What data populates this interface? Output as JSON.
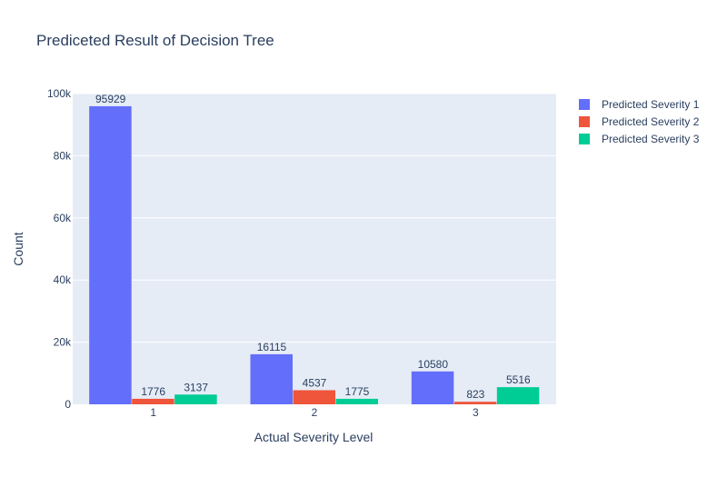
{
  "chart_data": {
    "type": "bar",
    "title": "Prediceted Result of Decision Tree",
    "xlabel": "Actual Severity Level",
    "ylabel": "Count",
    "categories": [
      "1",
      "2",
      "3"
    ],
    "series": [
      {
        "name": "Predicted Severity 1",
        "color": "#636efa",
        "values": [
          95929,
          16115,
          10580
        ]
      },
      {
        "name": "Predicted Severity 2",
        "color": "#ef553b",
        "values": [
          1776,
          4537,
          823
        ]
      },
      {
        "name": "Predicted Severity 3",
        "color": "#00cc96",
        "values": [
          3137,
          1775,
          5516
        ]
      }
    ],
    "ylim": [
      0,
      100000
    ],
    "yticks": [
      0,
      20000,
      40000,
      60000,
      80000,
      100000
    ],
    "ytick_labels": [
      "0",
      "20k",
      "40k",
      "60k",
      "80k",
      "100k"
    ],
    "grid": true,
    "legend_position": "top-right",
    "plot_background": "#e5ecf6"
  }
}
